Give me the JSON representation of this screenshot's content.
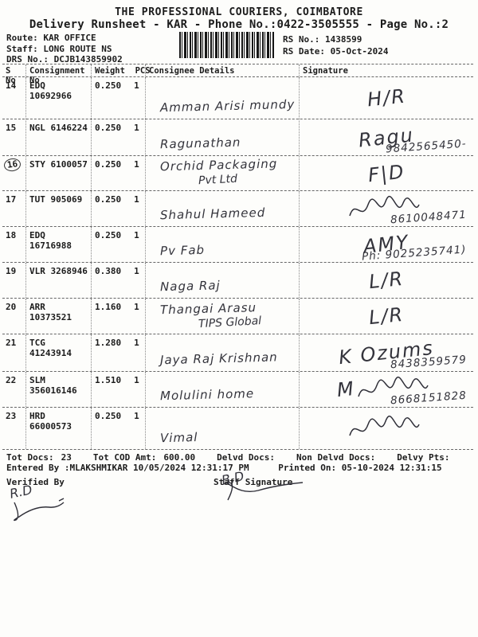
{
  "header": {
    "title": "THE PROFESSIONAL COURIERS, COIMBATORE",
    "subtitle": "Delivery Runsheet - KAR - Phone No.:0422-3505555 - Page No.:2",
    "route_label": "Route:",
    "route_value": "KAR OFFICE",
    "staff_label": "Staff:",
    "staff_value": "LONG ROUTE NS",
    "drs_label": "DRS No.:",
    "drs_value": "DCJB143859902",
    "rs_no_label": "RS No.:",
    "rs_no_value": "1438599",
    "rs_date_label": "RS Date:",
    "rs_date_value": "05-Oct-2024",
    "barcode_icon": "barcode-icon"
  },
  "table": {
    "headers": {
      "sno": "S No",
      "consignment": "Consignment No",
      "weight": "Weight",
      "pcs": "PCS",
      "consignee": "Consignee Details",
      "signature": "Signature"
    },
    "rows": [
      {
        "sno": "14",
        "consignment": "EDQ 10692966",
        "weight": "0.250",
        "pcs": "1",
        "circled": false,
        "consignee": [
          "Amman Arisi mundy"
        ],
        "sig_text": "H/R",
        "sig_scribble": false,
        "phone": ""
      },
      {
        "sno": "15",
        "consignment": "NGL 6146224",
        "weight": "0.250",
        "pcs": "1",
        "circled": false,
        "consignee": [
          "Ragunathan"
        ],
        "sig_text": "Ragu",
        "sig_scribble": false,
        "phone": "9842565450-"
      },
      {
        "sno": "16",
        "consignment": "STY 6100057",
        "weight": "0.250",
        "pcs": "1",
        "circled": true,
        "consignee": [
          "Orchid Packaging",
          "Pvt Ltd"
        ],
        "sig_text": "F|D",
        "sig_scribble": false,
        "phone": ""
      },
      {
        "sno": "17",
        "consignment": "TUT 905069",
        "weight": "0.250",
        "pcs": "1",
        "circled": false,
        "consignee": [
          "Shahul Hameed"
        ],
        "sig_text": "",
        "sig_scribble": true,
        "phone": "8610048471"
      },
      {
        "sno": "18",
        "consignment": "EDQ 16716988",
        "weight": "0.250",
        "pcs": "1",
        "circled": false,
        "consignee": [
          "Pv Fab"
        ],
        "sig_text": "AMY",
        "sig_scribble": false,
        "phone": "Ph: 9025235741)"
      },
      {
        "sno": "19",
        "consignment": "VLR 3268946",
        "weight": "0.380",
        "pcs": "1",
        "circled": false,
        "consignee": [
          "Naga Raj"
        ],
        "sig_text": "L/R",
        "sig_scribble": false,
        "phone": ""
      },
      {
        "sno": "20",
        "consignment": "ARR 10373521",
        "weight": "1.160",
        "pcs": "1",
        "circled": false,
        "consignee": [
          "Thangai Arasu",
          "TIPS Global"
        ],
        "sig_text": "L/R",
        "sig_scribble": false,
        "phone": ""
      },
      {
        "sno": "21",
        "consignment": "TCG 41243914",
        "weight": "1.280",
        "pcs": "1",
        "circled": false,
        "consignee": [
          "Jaya Raj Krishnan"
        ],
        "sig_text": "K Ozums",
        "sig_scribble": false,
        "phone": "8438359579"
      },
      {
        "sno": "22",
        "consignment": "SLM 356016146",
        "weight": "1.510",
        "pcs": "1",
        "circled": false,
        "consignee": [
          "Molulini home"
        ],
        "sig_text": "M",
        "sig_scribble": true,
        "phone": "8668151828"
      },
      {
        "sno": "23",
        "consignment": "HRD 66000573",
        "weight": "0.250",
        "pcs": "1",
        "circled": false,
        "consignee": [
          "Vimal"
        ],
        "sig_text": "",
        "sig_scribble": true,
        "phone": ""
      }
    ]
  },
  "footer": {
    "totals": [
      {
        "label": "Tot Docs:",
        "value": "23"
      },
      {
        "label": "Tot COD Amt:",
        "value": "600.00"
      },
      {
        "label": "Delvd Docs:",
        "value": ""
      },
      {
        "label": "Non Delvd Docs:",
        "value": ""
      },
      {
        "label": "Delvy Pts:",
        "value": ""
      }
    ],
    "entered_by": "Entered By :MLAKSHMIKAR 10/05/2024 12:31:17 PM",
    "printed_on": "Printed On: 05-10-2024 12:31:15",
    "verified_by_label": "Verified By",
    "staff_signature_label": "Staff Signature",
    "verified_by_sig": "R.D",
    "staff_sig": "B.D"
  }
}
